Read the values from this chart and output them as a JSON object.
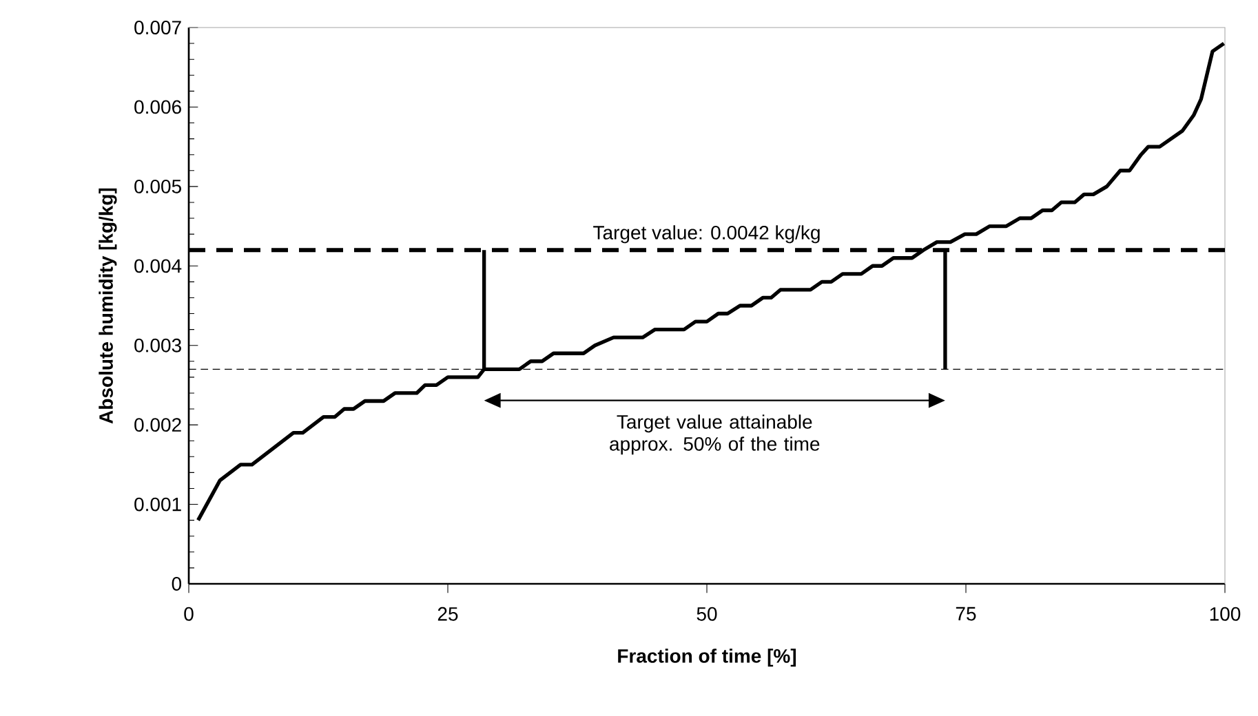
{
  "chart_data": {
    "type": "line",
    "xlabel": "Fraction of time [%]",
    "ylabel": "Absolute humidity [kg/kg]",
    "xlim": [
      0,
      100
    ],
    "xticks": [
      0,
      25,
      50,
      75,
      100
    ],
    "ylim": [
      0,
      0.007
    ],
    "yticks": [
      0,
      0.001,
      0.002,
      0.003,
      0.004,
      0.005,
      0.006,
      0.007
    ],
    "marker": "none",
    "line_style": "solid",
    "series": [
      {
        "color": "#000000",
        "x": [
          0.9,
          3.0,
          5.0,
          6.1,
          10.1,
          11.0,
          13.0,
          14.1,
          15.0,
          15.9,
          17.0,
          18.8,
          19.9,
          22.0,
          22.8,
          23.9,
          25.0,
          27.9,
          28.5,
          31.9,
          33.0,
          34.1,
          35.2,
          38.1,
          39.2,
          41.0,
          43.8,
          45.0,
          47.8,
          48.9,
          50.0,
          51.1,
          52.0,
          53.2,
          54.3,
          55.4,
          56.2,
          57.1,
          60.0,
          61.1,
          62.0,
          63.1,
          64.9,
          66.0,
          66.9,
          68.0,
          69.8,
          70.9,
          72.2,
          73.5,
          74.9,
          76.0,
          77.3,
          78.9,
          80.2,
          81.3,
          82.4,
          83.3,
          84.2,
          85.5,
          86.4,
          87.3,
          88.6,
          89.9,
          90.8,
          91.9,
          92.6,
          93.7,
          95.9,
          97.0,
          97.7,
          98.8,
          99.9
        ],
        "values": [
          0.0008,
          0.0013,
          0.0015,
          0.0015,
          0.0019,
          0.0019,
          0.0021,
          0.0021,
          0.0022,
          0.0022,
          0.0023,
          0.0023,
          0.0024,
          0.0024,
          0.0025,
          0.0025,
          0.0026,
          0.0026,
          0.0027,
          0.0027,
          0.0028,
          0.0028,
          0.0029,
          0.0029,
          0.003,
          0.0031,
          0.0031,
          0.0032,
          0.0032,
          0.0033,
          0.0033,
          0.0034,
          0.0034,
          0.0035,
          0.0035,
          0.0036,
          0.0036,
          0.0037,
          0.0037,
          0.0038,
          0.0038,
          0.0039,
          0.0039,
          0.004,
          0.004,
          0.0041,
          0.0041,
          0.0042,
          0.0043,
          0.0043,
          0.0044,
          0.0044,
          0.0045,
          0.0045,
          0.0046,
          0.0046,
          0.0047,
          0.0047,
          0.0048,
          0.0048,
          0.0049,
          0.0049,
          0.005,
          0.0052,
          0.0052,
          0.0054,
          0.0055,
          0.0055,
          0.0057,
          0.0059,
          0.0061,
          0.0067,
          0.0068
        ]
      }
    ],
    "ref_lines": [
      {
        "axis": "y",
        "value": 0.0042,
        "label": "Target value: 0.0042 kg/kg",
        "line_style": "dashed",
        "color": "#000000"
      },
      {
        "axis": "y",
        "value": 0.0027,
        "line_style": "dashed",
        "color": "#000000"
      },
      {
        "axis": "x",
        "value": 28.5,
        "line_style": "solid",
        "color": "#000000"
      },
      {
        "axis": "x",
        "value": 73,
        "line_style": "solid",
        "color": "#000000"
      }
    ],
    "annotations": [
      "Target value attainable approx. 50% of the time"
    ]
  }
}
